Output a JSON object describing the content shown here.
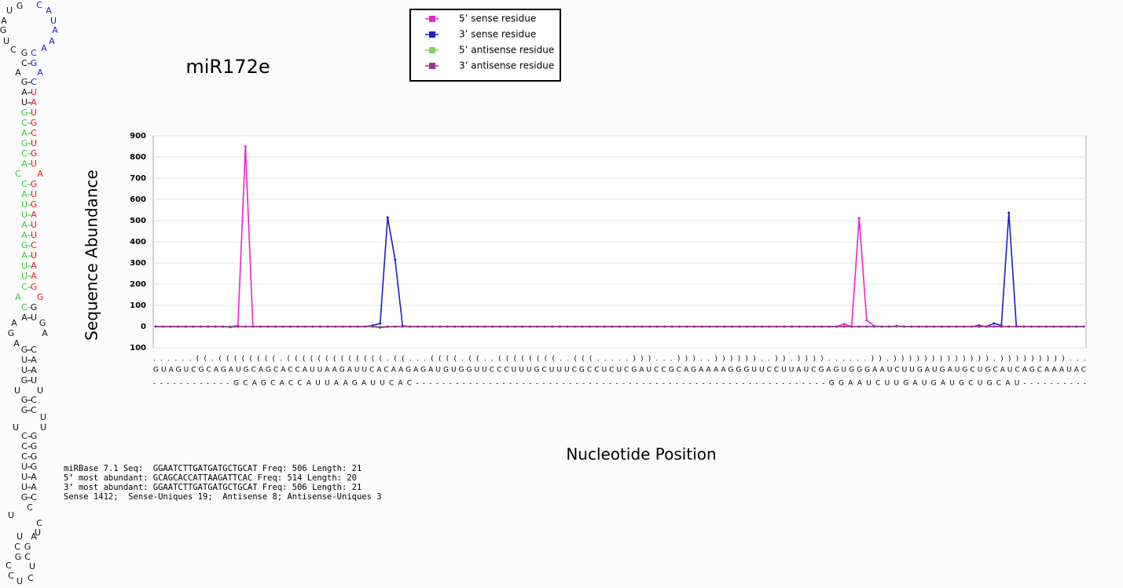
{
  "chart_data": {
    "type": "line",
    "title": "miR172e",
    "y_label": "Sequence Abundance",
    "x_label": "Nucleotide Position",
    "ylim": [
      -100,
      900
    ],
    "yticks": [
      {
        "value": -100,
        "label": "100"
      },
      0,
      100,
      200,
      300,
      400,
      500,
      600,
      700,
      800,
      900
    ],
    "grid": true,
    "legend": "top",
    "structure": "......((.((((((((.(((((((((((((.((...((((.((..((((((((..(((.....)))...)))..))))))..)).))))......)).))))))))))))).)))))))))...",
    "sequence": "GUAGUCGCAGAUGCAGCACCAUUAAGAUUCACAAGAGAUGUGGUUCCCUUUGCUUUCGCCUCUCGAUCCGCAGAAAAGGGUUCCUUAUCGAGUGGGAAUCUUGAUGAUGCUGCAUCAGCAAAUAC",
    "mature": "------------GCAGCACCAUUAAGAUUCAC--------------------------------------------------------------GGAAUCUUGAUGAUGCUGCAU----------",
    "series": [
      {
        "name": "5’ sense residue",
        "color": "#ee22cc",
        "values": [
          0,
          0,
          0,
          0,
          0,
          0,
          0,
          0,
          0,
          0,
          0,
          5,
          850,
          0,
          0,
          0,
          0,
          0,
          0,
          0,
          0,
          0,
          0,
          0,
          0,
          0,
          0,
          0,
          0,
          0,
          0,
          0,
          0,
          0,
          0,
          0,
          0,
          0,
          0,
          0,
          0,
          0,
          0,
          0,
          0,
          0,
          0,
          0,
          0,
          0,
          0,
          0,
          0,
          0,
          0,
          0,
          0,
          0,
          0,
          0,
          0,
          0,
          0,
          0,
          0,
          0,
          0,
          0,
          0,
          0,
          0,
          0,
          0,
          0,
          0,
          0,
          0,
          0,
          0,
          0,
          0,
          0,
          0,
          0,
          0,
          0,
          0,
          0,
          0,
          0,
          0,
          0,
          12,
          0,
          512,
          30,
          3,
          0,
          0,
          0,
          0,
          0,
          0,
          0,
          0,
          0,
          0,
          0,
          0,
          0,
          0,
          0,
          0,
          0,
          0,
          0,
          0,
          0,
          0,
          0,
          0,
          0,
          0,
          0,
          0
        ]
      },
      {
        "name": "3’ sense residue",
        "color": "#1c1cd0",
        "values": [
          0,
          0,
          0,
          0,
          0,
          0,
          0,
          0,
          0,
          0,
          0,
          0,
          0,
          0,
          0,
          0,
          0,
          0,
          0,
          0,
          0,
          0,
          0,
          0,
          0,
          0,
          0,
          0,
          0,
          5,
          15,
          515,
          315,
          3,
          0,
          0,
          0,
          0,
          0,
          0,
          0,
          0,
          0,
          0,
          0,
          0,
          0,
          0,
          0,
          0,
          0,
          0,
          0,
          0,
          0,
          0,
          0,
          0,
          0,
          0,
          0,
          0,
          0,
          0,
          0,
          0,
          0,
          0,
          0,
          0,
          0,
          0,
          0,
          0,
          0,
          0,
          0,
          0,
          0,
          0,
          0,
          0,
          0,
          0,
          0,
          0,
          0,
          0,
          0,
          0,
          0,
          0,
          0,
          0,
          0,
          0,
          0,
          0,
          0,
          0,
          0,
          0,
          0,
          0,
          0,
          0,
          0,
          0,
          0,
          0,
          5,
          0,
          15,
          5,
          537,
          2,
          0,
          0,
          0,
          0,
          0,
          0,
          0,
          0,
          0
        ]
      },
      {
        "name": "5’ antisense residue",
        "color": "#88cc66",
        "values": [
          0,
          0,
          0,
          0,
          0,
          0,
          0,
          0,
          0,
          0,
          0,
          0,
          0,
          0,
          0,
          0,
          0,
          0,
          0,
          0,
          0,
          0,
          0,
          0,
          0,
          0,
          0,
          0,
          0,
          0,
          0,
          0,
          0,
          0,
          0,
          0,
          0,
          0,
          0,
          0,
          0,
          0,
          0,
          0,
          0,
          0,
          0,
          0,
          0,
          0,
          0,
          0,
          0,
          0,
          0,
          0,
          0,
          0,
          0,
          0,
          0,
          0,
          0,
          0,
          0,
          0,
          0,
          0,
          0,
          0,
          0,
          0,
          0,
          0,
          0,
          0,
          0,
          0,
          0,
          0,
          0,
          0,
          0,
          0,
          0,
          0,
          0,
          0,
          0,
          0,
          0,
          0,
          0,
          0,
          0,
          0,
          0,
          0,
          0,
          0,
          0,
          0,
          0,
          0,
          0,
          0,
          0,
          0,
          0,
          0,
          0,
          0,
          0,
          0,
          0,
          0,
          0,
          0,
          0,
          0,
          0,
          0,
          0,
          0,
          0
        ]
      },
      {
        "name": "3’ antisense residue",
        "color": "#993399",
        "values": [
          0,
          0,
          0,
          0,
          0,
          0,
          0,
          0,
          0,
          0,
          -3,
          0,
          0,
          0,
          0,
          0,
          0,
          0,
          0,
          0,
          0,
          0,
          0,
          0,
          0,
          0,
          0,
          0,
          0,
          0,
          -5,
          -1,
          0,
          0,
          0,
          0,
          0,
          0,
          0,
          0,
          0,
          0,
          0,
          0,
          0,
          0,
          0,
          0,
          0,
          0,
          0,
          0,
          0,
          0,
          0,
          0,
          0,
          0,
          0,
          0,
          0,
          0,
          0,
          0,
          0,
          0,
          0,
          0,
          0,
          0,
          0,
          0,
          0,
          0,
          0,
          0,
          0,
          0,
          0,
          0,
          0,
          0,
          0,
          0,
          0,
          0,
          0,
          0,
          0,
          0,
          0,
          0,
          0,
          0,
          0,
          0,
          0,
          0,
          0,
          3,
          0,
          0,
          0,
          0,
          0,
          0,
          0,
          0,
          0,
          0,
          0,
          0,
          0,
          0,
          0,
          0,
          0,
          0,
          0,
          0,
          0,
          0,
          0,
          0,
          0
        ]
      }
    ]
  },
  "info": [
    "miRBase 7.1 Seq:  GGAATCTTGATGATGCTGCAT Freq: 506 Length: 21",
    "5’ most abundant: GCAGCACCATTAAGATTCAC Freq: 514 Length: 20",
    "3’ most abundant: GGAATCTTGATGATGCTGCAT Freq: 506 Length: 21",
    "Sense 1412;  Sense-Uniques 19;  Antisense 8; Antisense-Uniques 3"
  ],
  "hairpin": [
    "U",
    "G",
    "C",
    "A",
    "A",
    "U",
    "G",
    "A",
    "U",
    "A",
    "C",
    "G",
    "C",
    "A",
    "C",
    "G",
    "A",
    "A",
    "G",
    "C",
    "A",
    "U",
    "U",
    "A",
    "G",
    "U",
    "C",
    "G",
    "A",
    "C",
    "G",
    "U",
    "C",
    "G",
    "A",
    "U",
    "C",
    "A",
    "C",
    "G",
    "A",
    "U",
    "U",
    "G",
    "U",
    "A",
    "A",
    "U",
    "A",
    "U",
    "G",
    "C",
    "A",
    "U",
    "U",
    "A",
    "U",
    "A",
    "C",
    "G",
    "A",
    "G",
    "C",
    "G",
    "A",
    "U",
    "A",
    "G",
    "G",
    "A",
    "A",
    "G",
    "C",
    "U",
    "A",
    "U",
    "A",
    "G",
    "U",
    "U",
    "U",
    "G",
    "C",
    "G",
    "C",
    "U",
    "U",
    "U",
    "C",
    "G",
    "C",
    "G",
    "C",
    "G",
    "U",
    "G",
    "U",
    "A",
    "U",
    "A",
    "G",
    "C",
    "C",
    "U",
    "C",
    "U",
    "U",
    "A",
    "C",
    "G",
    "G",
    "C",
    "C",
    "U",
    "C",
    "C",
    "U"
  ]
}
